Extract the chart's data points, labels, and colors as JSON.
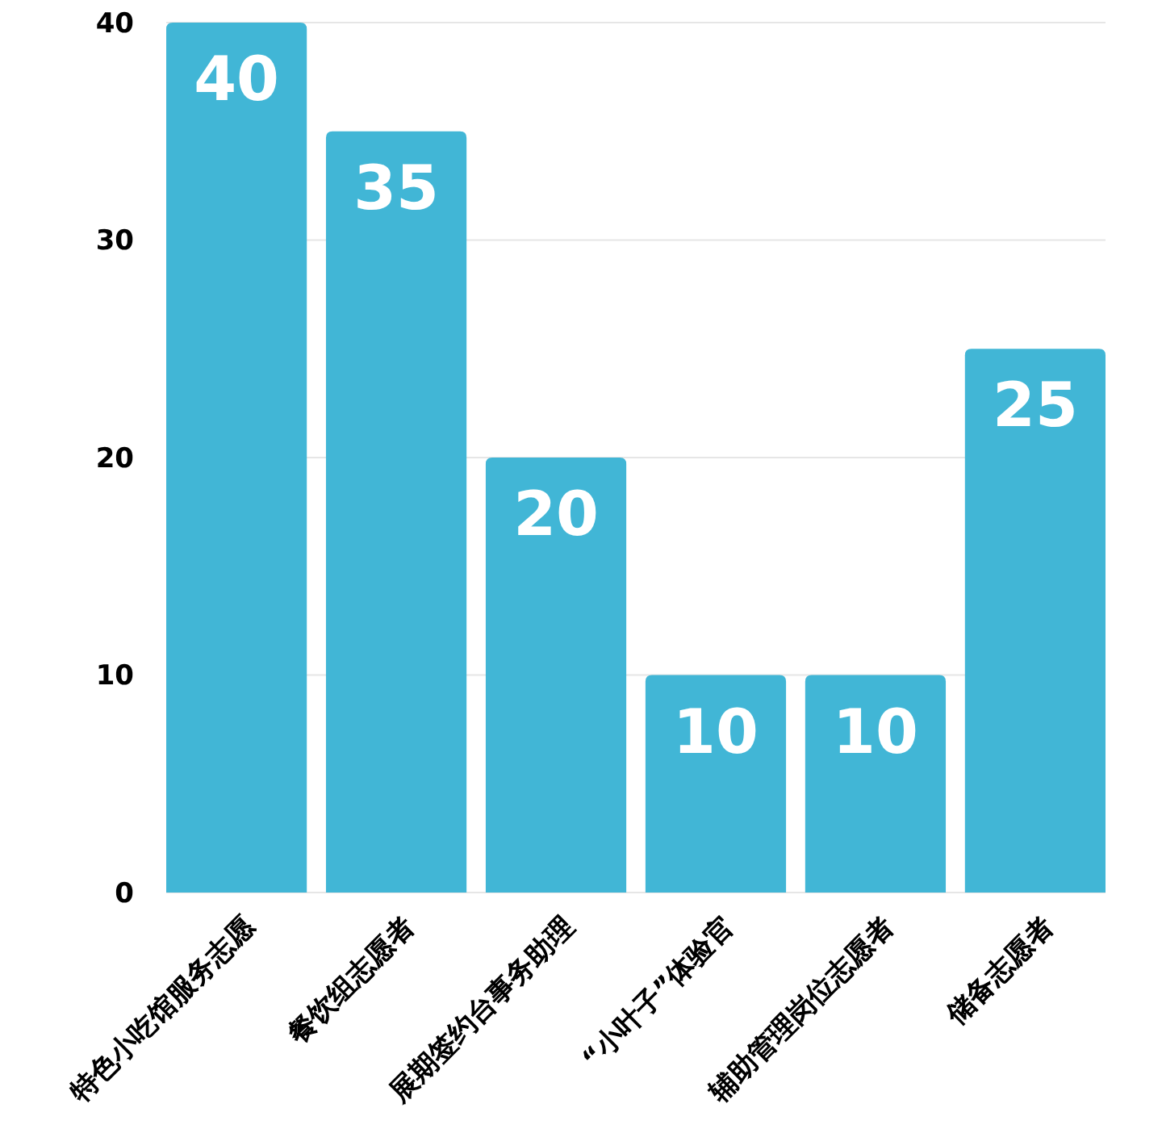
{
  "chart_data": {
    "type": "bar",
    "categories": [
      "特色小吃馆服务志愿",
      "餐饮组志愿者",
      "展期签约台事务助理",
      "“小叶子”体验官",
      "辅助管理岗位志愿者",
      "储备志愿者"
    ],
    "values": [
      40,
      35,
      20,
      10,
      10,
      25
    ],
    "color": "#41b6d6",
    "ylim": [
      0,
      40
    ],
    "yticks": [
      0,
      10,
      20,
      30,
      40
    ],
    "grid": "y",
    "data_labels": true
  }
}
